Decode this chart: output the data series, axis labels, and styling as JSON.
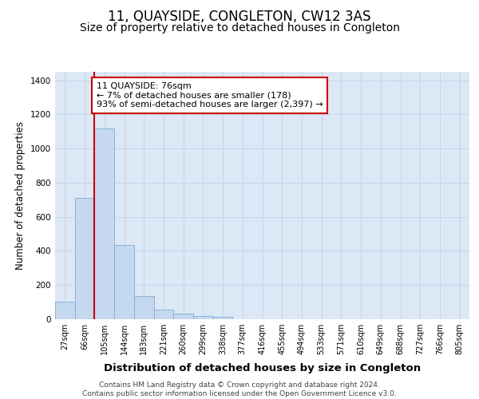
{
  "title": "11, QUAYSIDE, CONGLETON, CW12 3AS",
  "subtitle": "Size of property relative to detached houses in Congleton",
  "xlabel": "Distribution of detached houses by size in Congleton",
  "ylabel": "Number of detached properties",
  "bar_values": [
    105,
    710,
    1120,
    435,
    135,
    55,
    32,
    18,
    12,
    0,
    0,
    0,
    0,
    0,
    0,
    0,
    0,
    0,
    0,
    0,
    0
  ],
  "bar_labels": [
    "27sqm",
    "66sqm",
    "105sqm",
    "144sqm",
    "183sqm",
    "221sqm",
    "260sqm",
    "299sqm",
    "338sqm",
    "377sqm",
    "416sqm",
    "455sqm",
    "494sqm",
    "533sqm",
    "571sqm",
    "610sqm",
    "649sqm",
    "688sqm",
    "727sqm",
    "766sqm",
    "805sqm"
  ],
  "bar_color": "#c5d8f0",
  "bar_edge_color": "#7bafd4",
  "grid_color": "#c8d4e8",
  "background_color": "#dce8f5",
  "vline_color": "#cc0000",
  "vline_x": 1.5,
  "annotation_text": "11 QUAYSIDE: 76sqm\n← 7% of detached houses are smaller (178)\n93% of semi-detached houses are larger (2,397) →",
  "annotation_box_color": "#cc0000",
  "ylim": [
    0,
    1450
  ],
  "yticks": [
    0,
    200,
    400,
    600,
    800,
    1000,
    1200,
    1400
  ],
  "footer_text": "Contains HM Land Registry data © Crown copyright and database right 2024.\nContains public sector information licensed under the Open Government Licence v3.0.",
  "title_fontsize": 12,
  "subtitle_fontsize": 10,
  "xlabel_fontsize": 9.5,
  "ylabel_fontsize": 8.5,
  "tick_fontsize": 7,
  "annotation_fontsize": 8,
  "footer_fontsize": 6.5
}
